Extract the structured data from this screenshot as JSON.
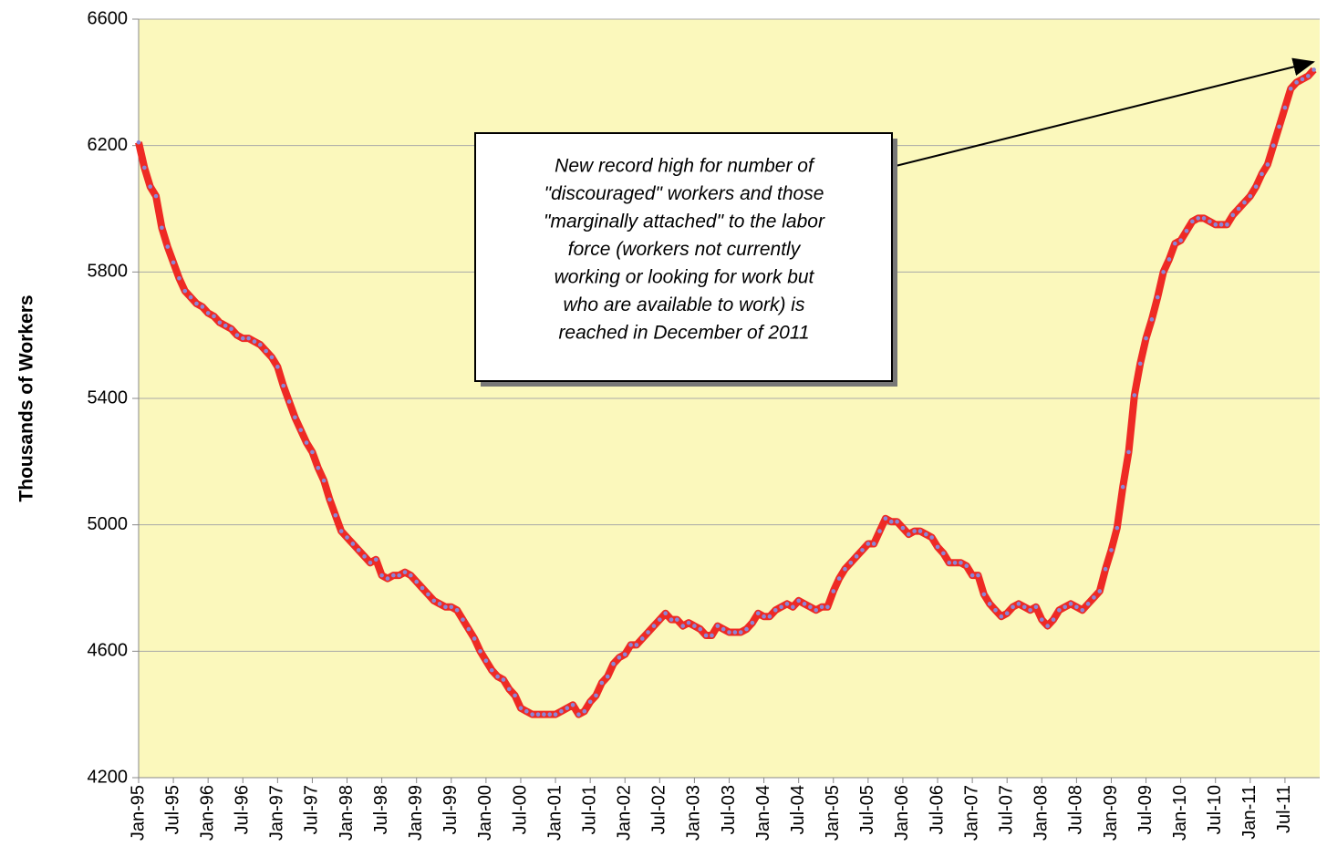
{
  "chart_data": {
    "type": "line",
    "y_label": "Thousands of Workers",
    "annotation": [
      "New record high for number of",
      "\"discouraged\" workers and those",
      "\"marginally attached\" to the labor",
      "force (workers not currently",
      "working or looking for work but",
      "who are available to work) is",
      "reached in December of 2011"
    ],
    "categories": [
      "Jan-95",
      null,
      null,
      null,
      null,
      null,
      "Jul-95",
      null,
      null,
      null,
      null,
      null,
      "Jan-96",
      null,
      null,
      null,
      null,
      null,
      "Jul-96",
      null,
      null,
      null,
      null,
      null,
      "Jan-97",
      null,
      null,
      null,
      null,
      null,
      "Jul-97",
      null,
      null,
      null,
      null,
      null,
      "Jan-98",
      null,
      null,
      null,
      null,
      null,
      "Jul-98",
      null,
      null,
      null,
      null,
      null,
      "Jan-99",
      null,
      null,
      null,
      null,
      null,
      "Jul-99",
      null,
      null,
      null,
      null,
      null,
      "Jan-00",
      null,
      null,
      null,
      null,
      null,
      "Jul-00",
      null,
      null,
      null,
      null,
      null,
      "Jan-01",
      null,
      null,
      null,
      null,
      null,
      "Jul-01",
      null,
      null,
      null,
      null,
      null,
      "Jan-02",
      null,
      null,
      null,
      null,
      null,
      "Jul-02",
      null,
      null,
      null,
      null,
      null,
      "Jan-03",
      null,
      null,
      null,
      null,
      null,
      "Jul-03",
      null,
      null,
      null,
      null,
      null,
      "Jan-04",
      null,
      null,
      null,
      null,
      null,
      "Jul-04",
      null,
      null,
      null,
      null,
      null,
      "Jan-05",
      null,
      null,
      null,
      null,
      null,
      "Jul-05",
      null,
      null,
      null,
      null,
      null,
      "Jan-06",
      null,
      null,
      null,
      null,
      null,
      "Jul-06",
      null,
      null,
      null,
      null,
      null,
      "Jan-07",
      null,
      null,
      null,
      null,
      null,
      "Jul-07",
      null,
      null,
      null,
      null,
      null,
      "Jan-08",
      null,
      null,
      null,
      null,
      null,
      "Jul-08",
      null,
      null,
      null,
      null,
      null,
      "Jan-09",
      null,
      null,
      null,
      null,
      null,
      "Jul-09",
      null,
      null,
      null,
      null,
      null,
      "Jan-10",
      null,
      null,
      null,
      null,
      null,
      "Jul-10",
      null,
      null,
      null,
      null,
      null,
      "Jan-11",
      null,
      null,
      null,
      null,
      null,
      "Jul-11",
      null,
      null,
      null,
      null,
      null
    ],
    "values": [
      6210,
      6130,
      6070,
      6040,
      5940,
      5880,
      5830,
      5780,
      5740,
      5720,
      5700,
      5690,
      5670,
      5660,
      5640,
      5630,
      5620,
      5600,
      5590,
      5590,
      5580,
      5570,
      5550,
      5530,
      5500,
      5440,
      5390,
      5340,
      5300,
      5260,
      5230,
      5180,
      5140,
      5080,
      5030,
      4980,
      4960,
      4940,
      4920,
      4900,
      4880,
      4890,
      4840,
      4830,
      4840,
      4840,
      4850,
      4840,
      4820,
      4800,
      4780,
      4760,
      4750,
      4740,
      4740,
      4730,
      4700,
      4670,
      4640,
      4600,
      4570,
      4540,
      4520,
      4510,
      4480,
      4460,
      4420,
      4410,
      4400,
      4400,
      4400,
      4400,
      4400,
      4410,
      4420,
      4430,
      4400,
      4410,
      4440,
      4460,
      4500,
      4520,
      4560,
      4580,
      4590,
      4620,
      4620,
      4640,
      4660,
      4680,
      4700,
      4720,
      4700,
      4700,
      4680,
      4690,
      4680,
      4670,
      4650,
      4650,
      4680,
      4670,
      4660,
      4660,
      4660,
      4670,
      4690,
      4720,
      4710,
      4710,
      4730,
      4740,
      4750,
      4740,
      4760,
      4750,
      4740,
      4730,
      4740,
      4740,
      4790,
      4830,
      4860,
      4880,
      4900,
      4920,
      4940,
      4940,
      4980,
      5020,
      5010,
      5010,
      4990,
      4970,
      4980,
      4980,
      4970,
      4960,
      4930,
      4910,
      4880,
      4880,
      4880,
      4870,
      4840,
      4840,
      4780,
      4750,
      4730,
      4710,
      4720,
      4740,
      4750,
      4740,
      4730,
      4740,
      4700,
      4680,
      4700,
      4730,
      4740,
      4750,
      4740,
      4730,
      4750,
      4770,
      4790,
      4860,
      4920,
      4990,
      5120,
      5230,
      5410,
      5510,
      5590,
      5650,
      5720,
      5800,
      5840,
      5890,
      5900,
      5930,
      5960,
      5970,
      5970,
      5960,
      5950,
      5950,
      5950,
      5980,
      6000,
      6020,
      6040,
      6070,
      6110,
      6140,
      6200,
      6260,
      6320,
      6380,
      6400,
      6410,
      6420,
      6440
    ],
    "color": "#ee2a24",
    "marker_color": "#8a86d8",
    "plot_background": "#fbf8bc",
    "ylim": [
      4200,
      6600
    ],
    "yticks": [
      4200,
      4600,
      5000,
      5400,
      5800,
      6200,
      6600
    ],
    "grid": true
  }
}
